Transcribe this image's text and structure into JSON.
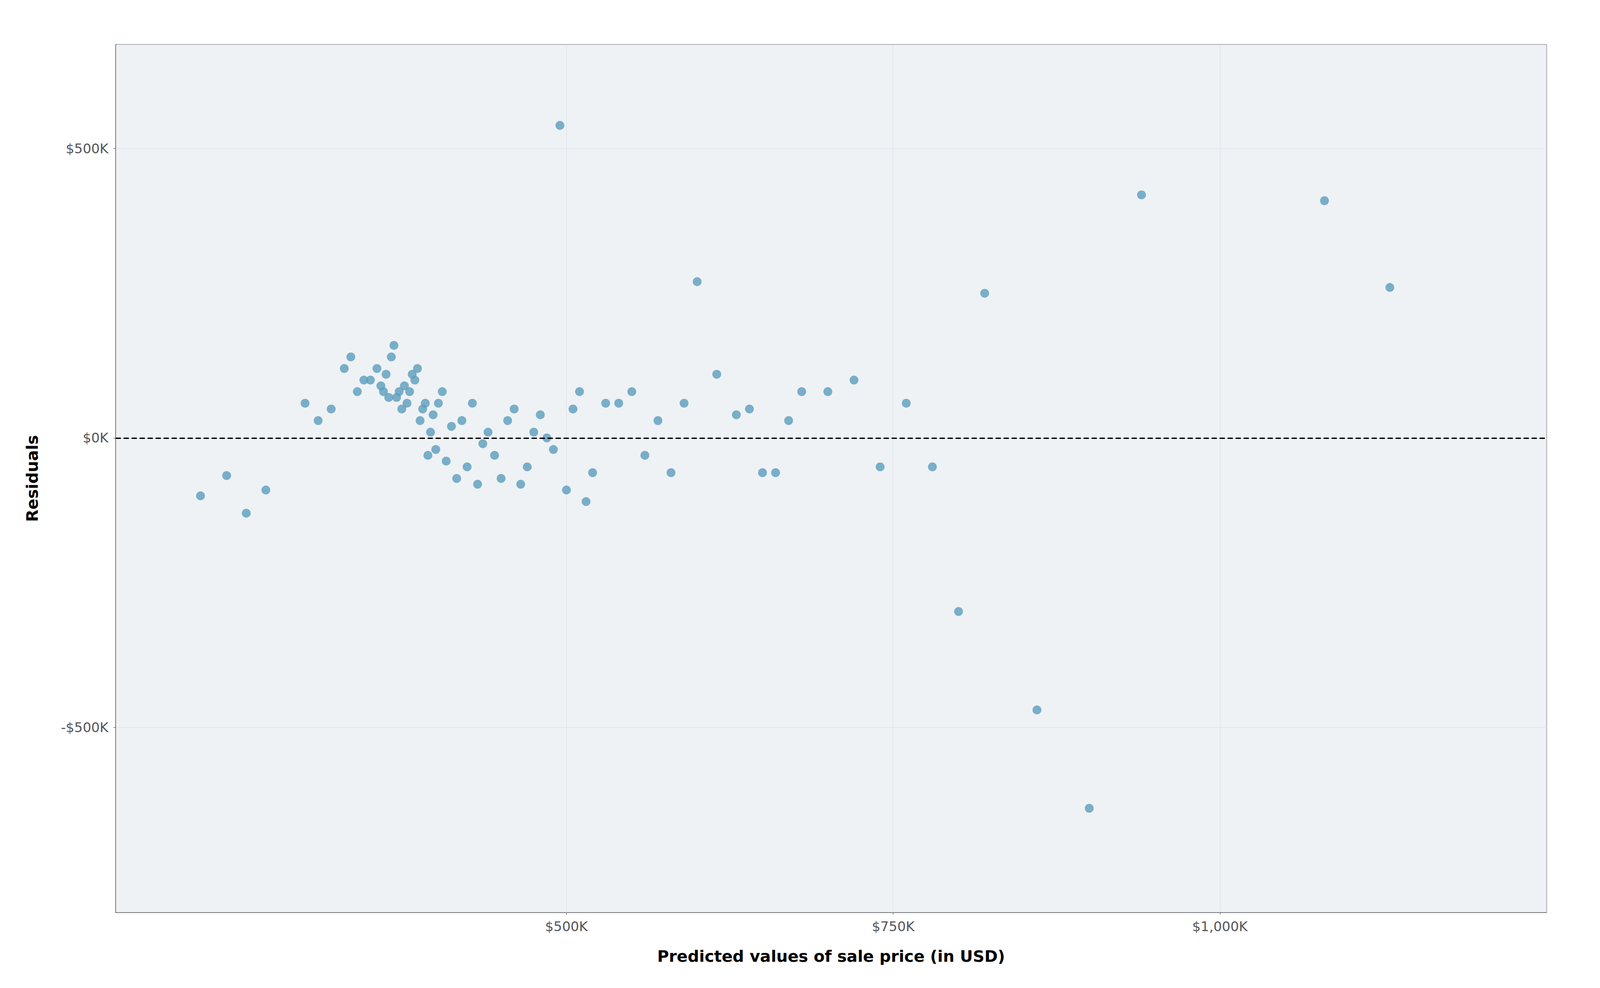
{
  "chart_data": {
    "type": "scatter",
    "x": [
      220000,
      240000,
      255000,
      270000,
      300000,
      310000,
      320000,
      330000,
      335000,
      340000,
      345000,
      350000,
      355000,
      358000,
      360000,
      362000,
      364000,
      366000,
      368000,
      370000,
      372000,
      374000,
      376000,
      378000,
      380000,
      382000,
      384000,
      386000,
      388000,
      390000,
      392000,
      394000,
      396000,
      398000,
      400000,
      402000,
      405000,
      408000,
      412000,
      416000,
      420000,
      424000,
      428000,
      432000,
      436000,
      440000,
      445000,
      450000,
      455000,
      460000,
      465000,
      470000,
      475000,
      480000,
      485000,
      490000,
      495000,
      500000,
      505000,
      510000,
      515000,
      520000,
      530000,
      540000,
      550000,
      560000,
      570000,
      580000,
      590000,
      600000,
      615000,
      630000,
      640000,
      650000,
      660000,
      670000,
      680000,
      700000,
      720000,
      740000,
      760000,
      780000,
      800000,
      820000,
      860000,
      900000,
      940000,
      1080000,
      1130000
    ],
    "y": [
      -100000,
      -65000,
      -130000,
      -90000,
      60000,
      30000,
      50000,
      120000,
      140000,
      80000,
      100000,
      100000,
      120000,
      90000,
      80000,
      110000,
      70000,
      140000,
      160000,
      70000,
      80000,
      50000,
      90000,
      60000,
      80000,
      110000,
      100000,
      120000,
      30000,
      50000,
      60000,
      -30000,
      10000,
      40000,
      -20000,
      60000,
      80000,
      -40000,
      20000,
      -70000,
      30000,
      -50000,
      60000,
      -80000,
      -10000,
      10000,
      -30000,
      -70000,
      30000,
      50000,
      -80000,
      -50000,
      10000,
      40000,
      0,
      -20000,
      540000,
      -90000,
      50000,
      80000,
      -110000,
      -60000,
      60000,
      60000,
      80000,
      -30000,
      30000,
      -60000,
      60000,
      270000,
      110000,
      40000,
      50000,
      -60000,
      -60000,
      30000,
      80000,
      80000,
      100000,
      -50000,
      60000,
      -50000,
      -300000,
      250000,
      -470000,
      -640000,
      420000,
      410000,
      260000
    ],
    "color": "#5b9cbd",
    "xlabel": "Predicted values of sale price (in USD)",
    "ylabel": "Residuals",
    "xlim": [
      155000,
      1250000
    ],
    "ylim": [
      -820000,
      680000
    ],
    "xticks": [
      {
        "value": 500000,
        "label": "$500K"
      },
      {
        "value": 750000,
        "label": "$750K"
      },
      {
        "value": 1000000,
        "label": "$1,000K"
      }
    ],
    "yticks": [
      {
        "value": -500000,
        "label": "-$500K"
      },
      {
        "value": 0,
        "label": "$0K"
      },
      {
        "value": 500000,
        "label": "$500K"
      }
    ],
    "hline": 0,
    "grid": true
  }
}
